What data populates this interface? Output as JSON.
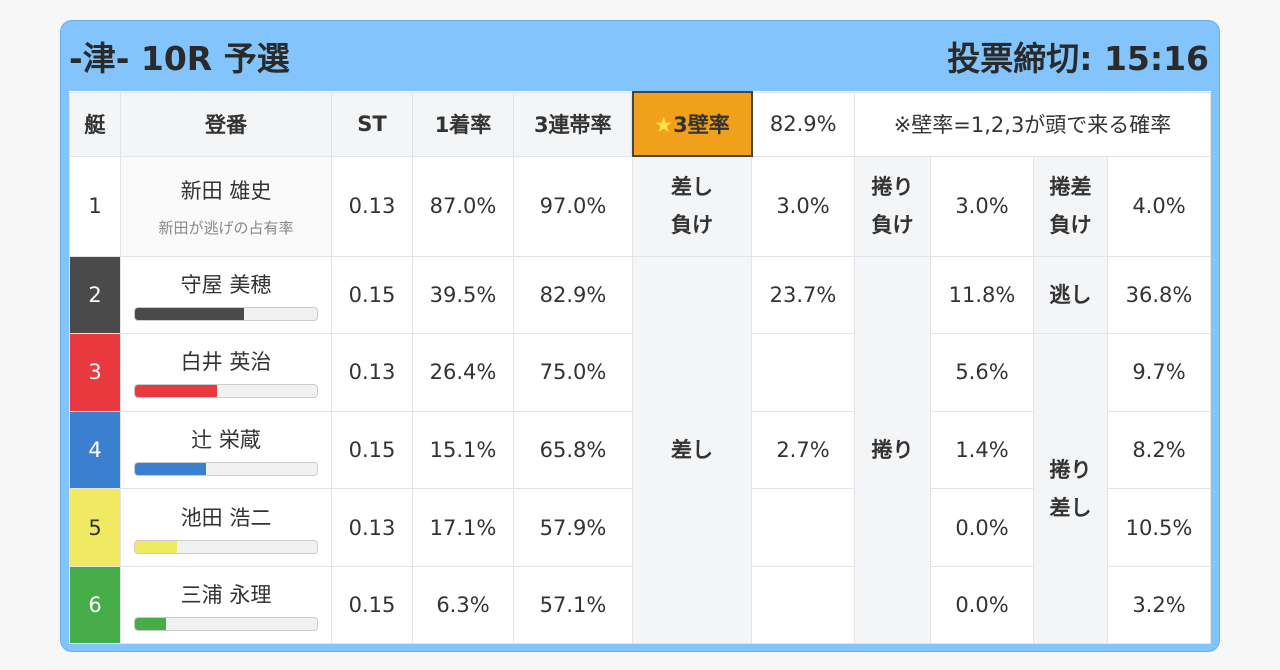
{
  "header": {
    "title": "-津- 10R 予選",
    "deadline": "投票締切: 15:16"
  },
  "columns": {
    "boat": "艇",
    "name": "登番",
    "st": "ST",
    "win": "1着率",
    "top3": "3連帯率",
    "wall_label": "3壁率",
    "wall_value": "82.9%",
    "note": "※壁率=1,2,3が頭で来る確率"
  },
  "row1": {
    "boat": "1",
    "name": "新田 雄史",
    "sub": "新田が逃げの占有率",
    "st": "0.13",
    "win": "87.0%",
    "top3": "97.0%",
    "a": "差し",
    "a2": "負け",
    "av": "3.0%",
    "b": "捲り",
    "b2": "負け",
    "bv": "3.0%",
    "c": "捲差",
    "c2": "負け",
    "cv": "4.0%"
  },
  "groups": {
    "sashi": "差し",
    "makuri": "捲り",
    "nige": "逃し",
    "makurisashi1": "捲り",
    "makurisashi2": "差し"
  },
  "rows": [
    {
      "boat": "2",
      "color": "#4a4a4a",
      "name": "守屋 美穂",
      "bar": 0.6,
      "st": "0.15",
      "win": "39.5%",
      "top3": "82.9%",
      "sv": "23.7%",
      "mv": "11.8%",
      "nv": "36.8%"
    },
    {
      "boat": "3",
      "color": "#e8393f",
      "name": "白井 英治",
      "bar": 0.45,
      "st": "0.13",
      "win": "26.4%",
      "top3": "75.0%",
      "sv": "",
      "mv": "5.6%",
      "nv": "9.7%"
    },
    {
      "boat": "4",
      "color": "#3b7fd0",
      "name": "辻 栄蔵",
      "bar": 0.39,
      "st": "0.15",
      "win": "15.1%",
      "top3": "65.8%",
      "sv": "2.7%",
      "mv": "1.4%",
      "nv": "8.2%"
    },
    {
      "boat": "5",
      "color": "#f0ea62",
      "name": "池田 浩二",
      "bar": 0.23,
      "st": "0.13",
      "win": "17.1%",
      "top3": "57.9%",
      "sv": "",
      "mv": "0.0%",
      "nv": "10.5%"
    },
    {
      "boat": "6",
      "color": "#47ad48",
      "name": "三浦 永理",
      "bar": 0.17,
      "st": "0.15",
      "win": "6.3%",
      "top3": "57.1%",
      "sv": "",
      "mv": "0.0%",
      "nv": "3.2%"
    }
  ]
}
